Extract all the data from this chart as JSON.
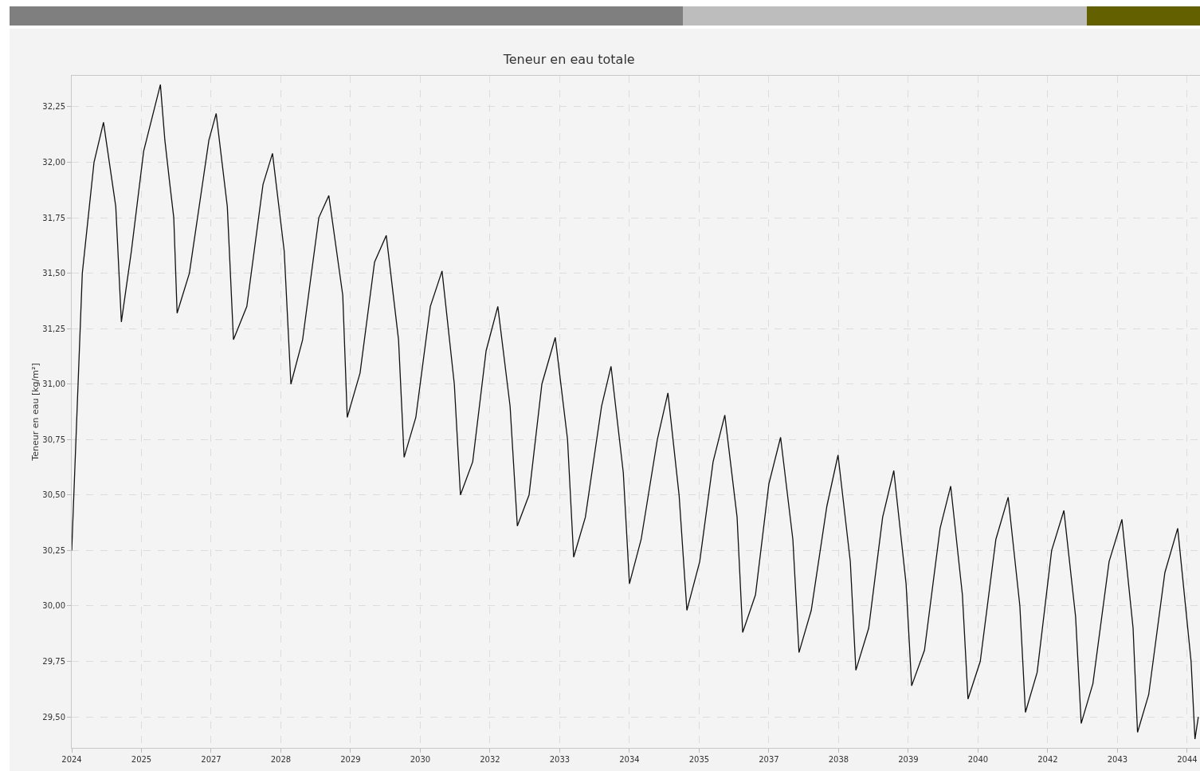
{
  "chart_data": {
    "type": "line",
    "title": "Teneur en eau totale",
    "ylabel": "Teneur en eau [kg/m²]",
    "x": [
      2024.0,
      2024.19,
      2024.4,
      2024.57,
      2024.79,
      2024.89,
      2025.07,
      2025.29,
      2025.59,
      2025.67,
      2025.76,
      2025.83,
      2025.89,
      2026.11,
      2026.46,
      2026.59,
      2026.79,
      2026.9,
      2027.14,
      2027.43,
      2027.6,
      2027.81,
      2027.93,
      2028.14,
      2028.43,
      2028.61,
      2028.86,
      2028.94,
      2029.17,
      2029.43,
      2029.64,
      2029.86,
      2029.96,
      2030.17,
      2030.43,
      2030.64,
      2030.86,
      2030.97,
      2031.19,
      2031.43,
      2031.64,
      2031.86,
      2031.99,
      2032.2,
      2032.43,
      2032.67,
      2032.89,
      2033.0,
      2033.21,
      2033.5,
      2033.67,
      2033.89,
      2034.0,
      2034.21,
      2034.5,
      2034.69,
      2034.89,
      2035.03,
      2035.26,
      2035.5,
      2035.71,
      2035.93,
      2036.03,
      2036.26,
      2036.5,
      2036.71,
      2036.93,
      2037.04,
      2037.26,
      2037.54,
      2037.74,
      2037.96,
      2038.06,
      2038.29,
      2038.54,
      2038.74,
      2038.96,
      2039.06,
      2039.29,
      2039.57,
      2039.76,
      2039.97,
      2040.07,
      2040.29,
      2040.57,
      2040.79,
      2041.0,
      2041.1,
      2041.31,
      2041.57,
      2041.79,
      2042.0,
      2042.1,
      2042.31,
      2042.6,
      2042.83,
      2043.03,
      2043.11,
      2043.31,
      2043.6,
      2043.83,
      2043.97,
      2044.07,
      2044.14,
      2044.2
    ],
    "values": [
      30.25,
      31.5,
      32.0,
      32.18,
      31.8,
      31.28,
      31.6,
      32.05,
      32.35,
      32.1,
      31.9,
      31.75,
      31.32,
      31.5,
      32.1,
      32.22,
      31.8,
      31.2,
      31.35,
      31.9,
      32.04,
      31.6,
      31.0,
      31.2,
      31.75,
      31.85,
      31.4,
      30.85,
      31.05,
      31.55,
      31.67,
      31.2,
      30.67,
      30.85,
      31.35,
      31.51,
      31.0,
      30.5,
      30.65,
      31.15,
      31.35,
      30.9,
      30.36,
      30.5,
      31.0,
      31.21,
      30.75,
      30.22,
      30.4,
      30.9,
      31.08,
      30.6,
      30.1,
      30.3,
      30.75,
      30.96,
      30.5,
      29.98,
      30.2,
      30.65,
      30.86,
      30.4,
      29.88,
      30.05,
      30.55,
      30.76,
      30.3,
      29.79,
      29.98,
      30.45,
      30.68,
      30.2,
      29.71,
      29.9,
      30.4,
      30.61,
      30.1,
      29.64,
      29.8,
      30.35,
      30.54,
      30.05,
      29.58,
      29.75,
      30.3,
      30.49,
      30.0,
      29.52,
      29.7,
      30.25,
      30.43,
      29.95,
      29.47,
      29.65,
      30.2,
      30.39,
      29.9,
      29.43,
      29.6,
      30.15,
      30.35,
      30.0,
      29.75,
      29.4,
      29.5
    ],
    "color": "#111111",
    "line_style": "solid",
    "marker": "none",
    "grid": true,
    "xlim": [
      2024.0,
      2044.23
    ],
    "xticks": [
      {
        "value": 2024,
        "label": "2024"
      },
      {
        "value": 2025.25,
        "label": "2025"
      },
      {
        "value": 2026.5,
        "label": "2027"
      },
      {
        "value": 2027.75,
        "label": "2028"
      },
      {
        "value": 2029,
        "label": "2029"
      },
      {
        "value": 2030.25,
        "label": "2030"
      },
      {
        "value": 2031.5,
        "label": "2032"
      },
      {
        "value": 2032.75,
        "label": "2033"
      },
      {
        "value": 2034,
        "label": "2034"
      },
      {
        "value": 2035.25,
        "label": "2035"
      },
      {
        "value": 2036.5,
        "label": "2037"
      },
      {
        "value": 2037.75,
        "label": "2038"
      },
      {
        "value": 2039,
        "label": "2039"
      },
      {
        "value": 2040.25,
        "label": "2040"
      },
      {
        "value": 2041.5,
        "label": "2042"
      },
      {
        "value": 2042.75,
        "label": "2043"
      },
      {
        "value": 2044,
        "label": "2044"
      }
    ],
    "ylim": [
      29.36,
      32.39
    ],
    "yticks": [
      {
        "value": 29.5,
        "label": "29,50"
      },
      {
        "value": 29.75,
        "label": "29,75"
      },
      {
        "value": 30,
        "label": "30,00"
      },
      {
        "value": 30.25,
        "label": "30,25"
      },
      {
        "value": 30.5,
        "label": "30,50"
      },
      {
        "value": 30.75,
        "label": "30,75"
      },
      {
        "value": 31,
        "label": "31,00"
      },
      {
        "value": 31.25,
        "label": "31,25"
      },
      {
        "value": 31.5,
        "label": "31,50"
      },
      {
        "value": 31.75,
        "label": "31,75"
      },
      {
        "value": 32,
        "label": "32,00"
      },
      {
        "value": 32.25,
        "label": "32,25"
      }
    ]
  }
}
